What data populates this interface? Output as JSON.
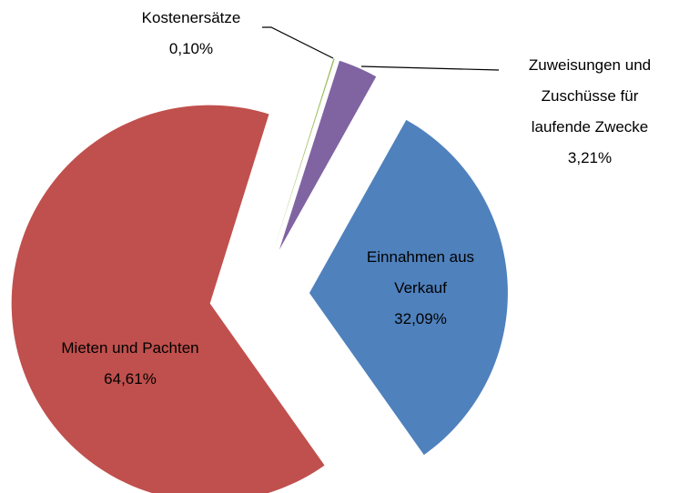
{
  "chart_data": {
    "type": "pie",
    "categories": [
      "Kostenersätze",
      "Zuweisungen und Zuschüsse für laufende Zwecke",
      "Einnahmen aus Verkauf",
      "Mieten und Pachten"
    ],
    "values": [
      0.1,
      3.21,
      32.09,
      64.61
    ],
    "value_labels": [
      "0,10%",
      "3,21%",
      "32,09%",
      "64,61%"
    ],
    "colors": [
      "#9bbb59",
      "#8064a2",
      "#4f81bd",
      "#c0504d"
    ],
    "exploded": true
  }
}
